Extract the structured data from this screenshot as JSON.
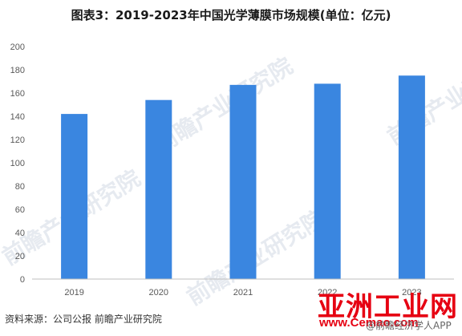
{
  "page_title": "图表3：2019-2023年中国光学薄膜市场规模(单位：亿元)",
  "source": "资料来源：公司公报 前瞻产业研究院",
  "watermark": {
    "logo_text": "前瞻产业研究院",
    "brand_main": "亚洲工业网",
    "brand_url": "www.Cemao.com",
    "app_text": "@前瞻经济学人APP"
  },
  "colors": {
    "bar": "#3a86e0",
    "axis": "#bfbfbf"
  },
  "chart_data": {
    "type": "bar",
    "title": "图表3：2019-2023年中国光学薄膜市场规模(单位：亿元)",
    "categories": [
      "2019",
      "2020",
      "2021",
      "2022",
      "2023"
    ],
    "values": [
      142,
      154,
      167,
      168,
      175
    ],
    "ylim": [
      0,
      200
    ],
    "yticks": [
      0,
      20,
      40,
      60,
      80,
      100,
      120,
      140,
      160,
      180,
      200
    ],
    "xlabel": "",
    "ylabel": "",
    "grid": false,
    "legend": "none"
  }
}
